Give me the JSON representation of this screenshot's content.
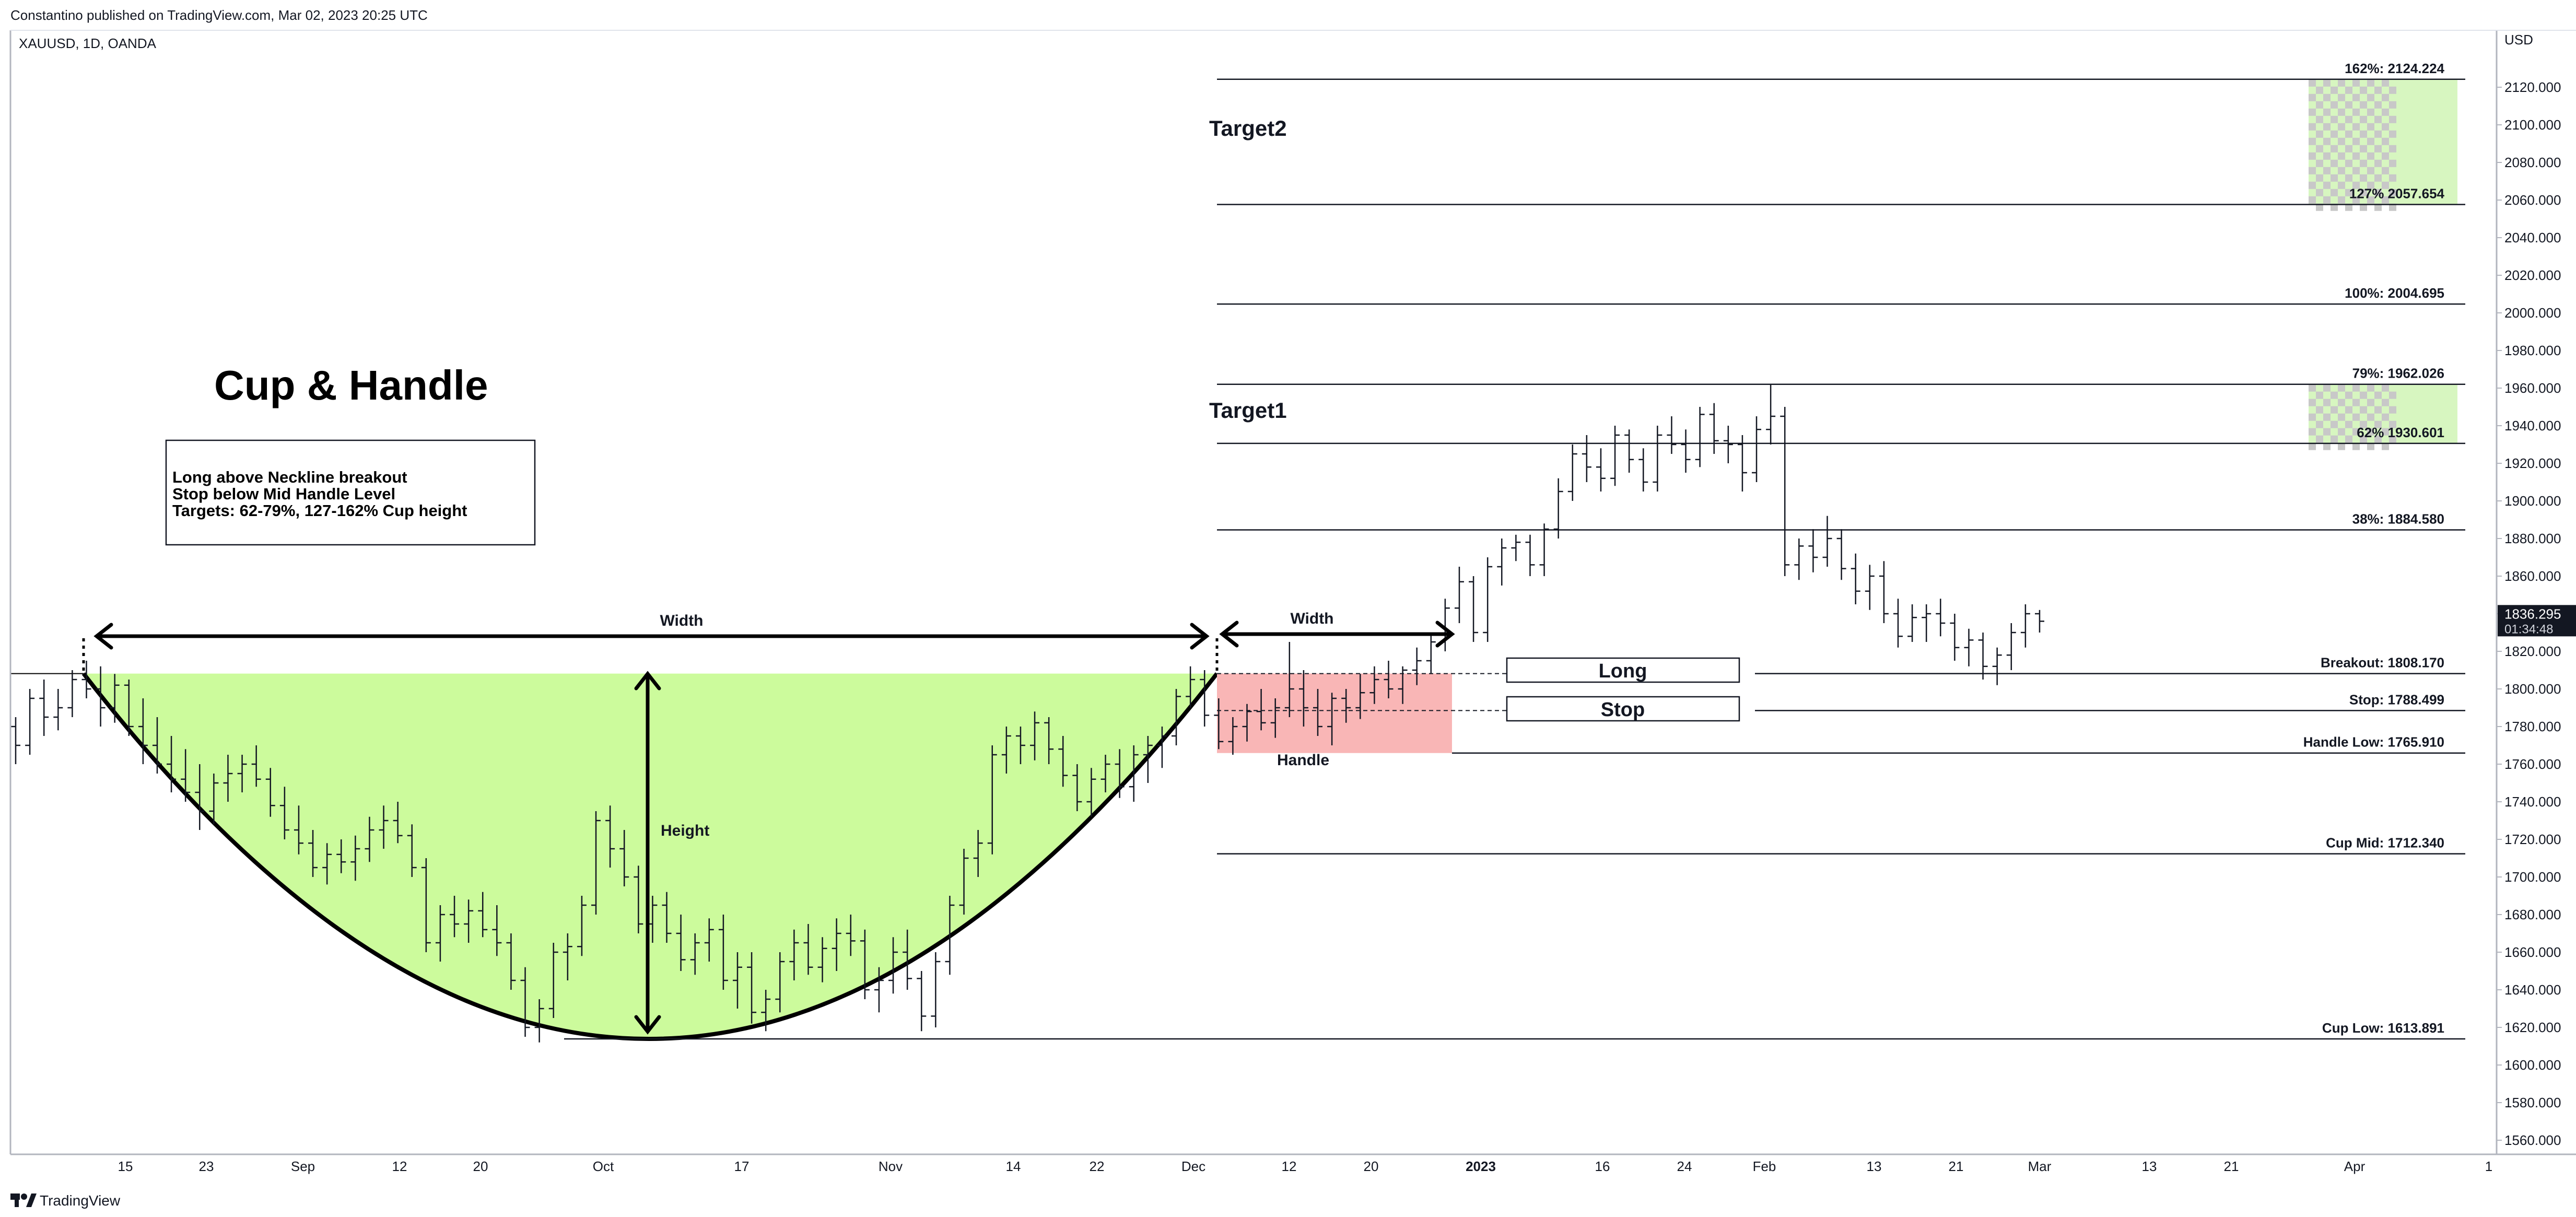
{
  "header": {
    "published": "Constantino published on TradingView.com, Mar 02, 2023 20:25 UTC",
    "symbol": "XAUUSD, 1D, OANDA"
  },
  "footer": {
    "brand": "TradingView",
    "logo_icon": "tradingview-logo-icon"
  },
  "chart_data": {
    "type": "ohlc",
    "currency_label": "USD",
    "ylim": [
      1550,
      2140
    ],
    "y_ticks": [
      1560,
      1580,
      1600,
      1620,
      1640,
      1660,
      1680,
      1700,
      1720,
      1740,
      1760,
      1780,
      1800,
      1820,
      1840,
      1860,
      1880,
      1900,
      1920,
      1940,
      1960,
      1980,
      2000,
      2020,
      2040,
      2060,
      2080,
      2100,
      2120
    ],
    "x_ticks": [
      "15",
      "23",
      "Sep",
      "12",
      "20",
      "Oct",
      "17",
      "Nov",
      "14",
      "22",
      "Dec",
      "12",
      "20",
      "2023",
      "16",
      "24",
      "Feb",
      "13",
      "21",
      "Mar",
      "13",
      "21",
      "Apr",
      "1"
    ],
    "last_price": "1836.295",
    "countdown": "01:34:48",
    "title": "Cup & Handle",
    "notes": [
      "Long above Neckline breakout",
      "Stop below Mid Handle Level",
      "Targets: 62-79%, 127-162% Cup height"
    ],
    "levels": [
      {
        "label": "162%: 2124.224",
        "value": 2124.224
      },
      {
        "label": "127% 2057.654",
        "value": 2057.654
      },
      {
        "label": "100%: 2004.695",
        "value": 2004.695
      },
      {
        "label": "79%: 1962.026",
        "value": 1962.026
      },
      {
        "label": "62% 1930.601",
        "value": 1930.601
      },
      {
        "label": "38%: 1884.580",
        "value": 1884.58
      },
      {
        "label": "Breakout: 1808.170",
        "value": 1808.17
      },
      {
        "label": "Stop: 1788.499",
        "value": 1788.499
      },
      {
        "label": "Handle Low: 1765.910",
        "value": 1765.91
      },
      {
        "label": "Cup Mid: 1712.340",
        "value": 1712.34
      },
      {
        "label": "Cup Low: 1613.891",
        "value": 1613.891
      }
    ],
    "annotations": {
      "target1": "Target1",
      "target2": "Target2",
      "width": "Width",
      "height": "Height",
      "handle": "Handle",
      "long": "Long",
      "stop": "Stop"
    },
    "colors": {
      "cup_fill": "#ccfb9c",
      "handle_fill": "#f9b6b6",
      "target_fill": "#b6ee8c",
      "bars": "#131722"
    },
    "bars": [
      [
        1780,
        1785,
        1760,
        1770
      ],
      [
        1770,
        1800,
        1765,
        1795
      ],
      [
        1795,
        1805,
        1775,
        1785
      ],
      [
        1785,
        1800,
        1778,
        1790
      ],
      [
        1790,
        1810,
        1785,
        1805
      ],
      [
        1805,
        1815,
        1795,
        1800
      ],
      [
        1800,
        1812,
        1780,
        1790
      ],
      [
        1790,
        1808,
        1782,
        1802
      ],
      [
        1802,
        1805,
        1775,
        1780
      ],
      [
        1780,
        1795,
        1760,
        1770
      ],
      [
        1770,
        1785,
        1755,
        1760
      ],
      [
        1760,
        1775,
        1745,
        1752
      ],
      [
        1752,
        1768,
        1740,
        1745
      ],
      [
        1745,
        1760,
        1725,
        1735
      ],
      [
        1735,
        1755,
        1728,
        1750
      ],
      [
        1750,
        1765,
        1740,
        1755
      ],
      [
        1755,
        1765,
        1745,
        1760
      ],
      [
        1760,
        1770,
        1748,
        1752
      ],
      [
        1752,
        1758,
        1732,
        1738
      ],
      [
        1738,
        1748,
        1720,
        1725
      ],
      [
        1725,
        1738,
        1712,
        1718
      ],
      [
        1718,
        1725,
        1700,
        1705
      ],
      [
        1705,
        1718,
        1696,
        1712
      ],
      [
        1712,
        1720,
        1702,
        1708
      ],
      [
        1708,
        1722,
        1698,
        1715
      ],
      [
        1715,
        1732,
        1708,
        1725
      ],
      [
        1725,
        1738,
        1715,
        1730
      ],
      [
        1730,
        1740,
        1718,
        1722
      ],
      [
        1722,
        1728,
        1700,
        1705
      ],
      [
        1705,
        1710,
        1660,
        1665
      ],
      [
        1665,
        1685,
        1655,
        1680
      ],
      [
        1680,
        1690,
        1668,
        1675
      ],
      [
        1675,
        1688,
        1665,
        1682
      ],
      [
        1682,
        1692,
        1668,
        1672
      ],
      [
        1672,
        1685,
        1658,
        1665
      ],
      [
        1665,
        1670,
        1640,
        1645
      ],
      [
        1645,
        1652,
        1615,
        1620
      ],
      [
        1620,
        1635,
        1612,
        1630
      ],
      [
        1630,
        1665,
        1625,
        1660
      ],
      [
        1660,
        1670,
        1645,
        1663
      ],
      [
        1663,
        1690,
        1658,
        1685
      ],
      [
        1685,
        1735,
        1680,
        1730
      ],
      [
        1730,
        1738,
        1705,
        1715
      ],
      [
        1715,
        1725,
        1695,
        1700
      ],
      [
        1700,
        1706,
        1670,
        1675
      ],
      [
        1675,
        1690,
        1665,
        1685
      ],
      [
        1685,
        1692,
        1665,
        1670
      ],
      [
        1670,
        1680,
        1650,
        1656
      ],
      [
        1656,
        1670,
        1648,
        1665
      ],
      [
        1665,
        1678,
        1655,
        1672
      ],
      [
        1672,
        1680,
        1640,
        1645
      ],
      [
        1645,
        1660,
        1630,
        1652
      ],
      [
        1652,
        1660,
        1622,
        1628
      ],
      [
        1628,
        1640,
        1618,
        1635
      ],
      [
        1635,
        1660,
        1628,
        1655
      ],
      [
        1655,
        1672,
        1645,
        1665
      ],
      [
        1665,
        1675,
        1648,
        1652
      ],
      [
        1652,
        1668,
        1644,
        1662
      ],
      [
        1662,
        1678,
        1650,
        1670
      ],
      [
        1670,
        1680,
        1658,
        1666
      ],
      [
        1666,
        1672,
        1635,
        1640
      ],
      [
        1640,
        1652,
        1628,
        1645
      ],
      [
        1645,
        1668,
        1638,
        1660
      ],
      [
        1660,
        1672,
        1640,
        1646
      ],
      [
        1646,
        1650,
        1618,
        1626
      ],
      [
        1626,
        1660,
        1620,
        1655
      ],
      [
        1655,
        1690,
        1648,
        1685
      ],
      [
        1685,
        1715,
        1680,
        1710
      ],
      [
        1710,
        1725,
        1700,
        1718
      ],
      [
        1718,
        1770,
        1712,
        1765
      ],
      [
        1765,
        1780,
        1755,
        1775
      ],
      [
        1775,
        1780,
        1760,
        1770
      ],
      [
        1770,
        1788,
        1762,
        1782
      ],
      [
        1782,
        1785,
        1760,
        1768
      ],
      [
        1768,
        1775,
        1748,
        1754
      ],
      [
        1754,
        1760,
        1735,
        1740
      ],
      [
        1740,
        1758,
        1732,
        1752
      ],
      [
        1752,
        1765,
        1745,
        1760
      ],
      [
        1760,
        1768,
        1742,
        1748
      ],
      [
        1748,
        1770,
        1740,
        1765
      ],
      [
        1765,
        1775,
        1750,
        1770
      ],
      [
        1770,
        1780,
        1758,
        1775
      ],
      [
        1775,
        1800,
        1770,
        1796
      ],
      [
        1796,
        1812,
        1790,
        1805
      ],
      [
        1805,
        1810,
        1780,
        1786
      ],
      [
        1786,
        1795,
        1768,
        1772
      ],
      [
        1772,
        1785,
        1765,
        1780
      ],
      [
        1780,
        1792,
        1772,
        1788
      ],
      [
        1788,
        1800,
        1778,
        1782
      ],
      [
        1782,
        1795,
        1774,
        1790
      ],
      [
        1790,
        1825,
        1785,
        1800
      ],
      [
        1800,
        1810,
        1780,
        1790
      ],
      [
        1790,
        1800,
        1775,
        1780
      ],
      [
        1780,
        1798,
        1770,
        1795
      ],
      [
        1795,
        1800,
        1782,
        1790
      ],
      [
        1790,
        1808,
        1784,
        1798
      ],
      [
        1798,
        1812,
        1792,
        1805
      ],
      [
        1805,
        1815,
        1795,
        1800
      ],
      [
        1800,
        1812,
        1792,
        1810
      ],
      [
        1810,
        1822,
        1802,
        1815
      ],
      [
        1815,
        1830,
        1808,
        1825
      ],
      [
        1825,
        1848,
        1820,
        1843
      ],
      [
        1843,
        1865,
        1835,
        1857
      ],
      [
        1857,
        1860,
        1825,
        1830
      ],
      [
        1830,
        1870,
        1825,
        1865
      ],
      [
        1865,
        1880,
        1855,
        1875
      ],
      [
        1875,
        1882,
        1868,
        1878
      ],
      [
        1878,
        1882,
        1860,
        1866
      ],
      [
        1866,
        1888,
        1860,
        1885
      ],
      [
        1885,
        1912,
        1880,
        1905
      ],
      [
        1905,
        1930,
        1900,
        1925
      ],
      [
        1925,
        1935,
        1910,
        1918
      ],
      [
        1918,
        1928,
        1905,
        1912
      ],
      [
        1912,
        1940,
        1908,
        1935
      ],
      [
        1935,
        1938,
        1915,
        1922
      ],
      [
        1922,
        1928,
        1905,
        1910
      ],
      [
        1910,
        1940,
        1905,
        1935
      ],
      [
        1935,
        1945,
        1925,
        1930
      ],
      [
        1930,
        1938,
        1915,
        1922
      ],
      [
        1922,
        1950,
        1918,
        1946
      ],
      [
        1946,
        1952,
        1925,
        1932
      ],
      [
        1932,
        1940,
        1920,
        1930
      ],
      [
        1930,
        1935,
        1905,
        1915
      ],
      [
        1915,
        1945,
        1910,
        1938
      ],
      [
        1938,
        1962,
        1930,
        1945
      ],
      [
        1945,
        1950,
        1860,
        1866
      ],
      [
        1866,
        1880,
        1858,
        1876
      ],
      [
        1876,
        1885,
        1862,
        1870
      ],
      [
        1870,
        1892,
        1865,
        1880
      ],
      [
        1880,
        1885,
        1858,
        1864
      ],
      [
        1864,
        1872,
        1845,
        1852
      ],
      [
        1852,
        1866,
        1842,
        1860
      ],
      [
        1860,
        1868,
        1835,
        1840
      ],
      [
        1840,
        1848,
        1822,
        1828
      ],
      [
        1828,
        1845,
        1825,
        1838
      ],
      [
        1838,
        1845,
        1825,
        1840
      ],
      [
        1840,
        1848,
        1828,
        1835
      ],
      [
        1835,
        1840,
        1815,
        1822
      ],
      [
        1822,
        1832,
        1812,
        1826
      ],
      [
        1826,
        1830,
        1805,
        1812
      ],
      [
        1812,
        1822,
        1802,
        1818
      ],
      [
        1818,
        1835,
        1810,
        1830
      ],
      [
        1830,
        1845,
        1822,
        1840
      ],
      [
        1840,
        1842,
        1830,
        1836
      ]
    ]
  }
}
